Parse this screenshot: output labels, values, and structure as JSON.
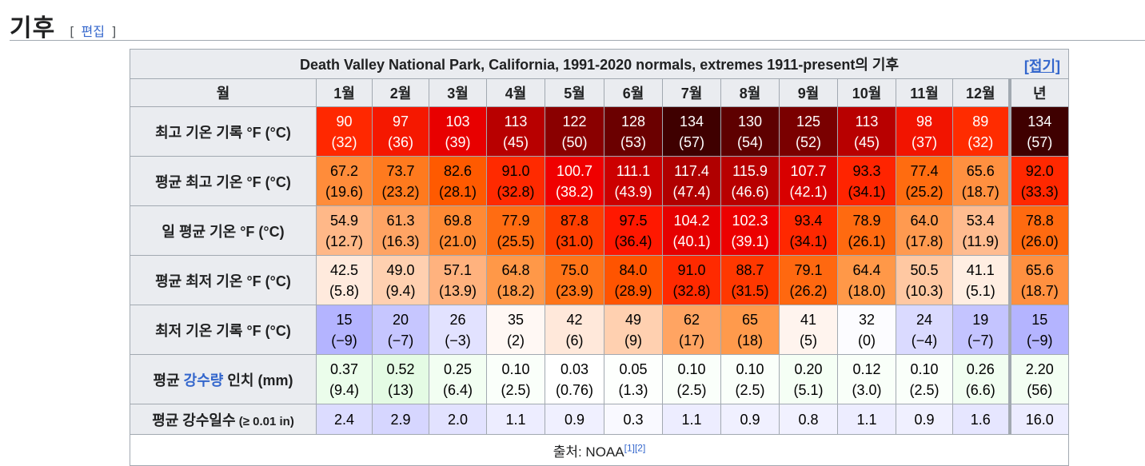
{
  "section": {
    "title": "기후",
    "edit_open": "[",
    "edit_label": "편집",
    "edit_close": "]"
  },
  "table": {
    "caption": "Death Valley National Park, California, 1991-2020 normals, extremes 1911-present의 기후",
    "collapse_label": "[접기]",
    "month_header": "월",
    "months": [
      "1월",
      "2월",
      "3월",
      "4월",
      "5월",
      "6월",
      "7월",
      "8월",
      "9월",
      "10월",
      "11월",
      "12월",
      "년"
    ],
    "rows": [
      {
        "label": "최고 기온 기록 °F (°C)",
        "cells": [
          {
            "f": "90",
            "c": "(32)",
            "bg": "#ff2800",
            "fg": "#ffffff"
          },
          {
            "f": "97",
            "c": "(36)",
            "bg": "#f51800",
            "fg": "#ffffff"
          },
          {
            "f": "103",
            "c": "(39)",
            "bg": "#e80000",
            "fg": "#ffffff"
          },
          {
            "f": "113",
            "c": "(45)",
            "bg": "#b80000",
            "fg": "#ffffff"
          },
          {
            "f": "122",
            "c": "(50)",
            "bg": "#8a0000",
            "fg": "#ffffff"
          },
          {
            "f": "128",
            "c": "(53)",
            "bg": "#6b0000",
            "fg": "#ffffff"
          },
          {
            "f": "134",
            "c": "(57)",
            "bg": "#3f0000",
            "fg": "#ffffff"
          },
          {
            "f": "130",
            "c": "(54)",
            "bg": "#5e0000",
            "fg": "#ffffff"
          },
          {
            "f": "125",
            "c": "(52)",
            "bg": "#7a0000",
            "fg": "#ffffff"
          },
          {
            "f": "113",
            "c": "(45)",
            "bg": "#b80000",
            "fg": "#ffffff"
          },
          {
            "f": "98",
            "c": "(37)",
            "bg": "#f21400",
            "fg": "#ffffff"
          },
          {
            "f": "89",
            "c": "(32)",
            "bg": "#ff2c00",
            "fg": "#ffffff"
          },
          {
            "f": "134",
            "c": "(57)",
            "bg": "#3f0000",
            "fg": "#ffffff"
          }
        ]
      },
      {
        "label": "평균 최고 기온 °F (°C)",
        "cells": [
          {
            "f": "67.2",
            "c": "(19.6)",
            "bg": "#ff8c3a",
            "fg": "#000000"
          },
          {
            "f": "73.7",
            "c": "(23.2)",
            "bg": "#ff7a1e",
            "fg": "#000000"
          },
          {
            "f": "82.6",
            "c": "(28.1)",
            "bg": "#ff5a00",
            "fg": "#000000"
          },
          {
            "f": "91.0",
            "c": "(32.8)",
            "bg": "#ff2a00",
            "fg": "#000000"
          },
          {
            "f": "100.7",
            "c": "(38.2)",
            "bg": "#f00000",
            "fg": "#ffffff"
          },
          {
            "f": "111.1",
            "c": "(43.9)",
            "bg": "#cc0000",
            "fg": "#ffffff"
          },
          {
            "f": "117.4",
            "c": "(47.4)",
            "bg": "#b00000",
            "fg": "#ffffff"
          },
          {
            "f": "115.9",
            "c": "(46.6)",
            "bg": "#b80000",
            "fg": "#ffffff"
          },
          {
            "f": "107.7",
            "c": "(42.1)",
            "bg": "#d80000",
            "fg": "#ffffff"
          },
          {
            "f": "93.3",
            "c": "(34.1)",
            "bg": "#ff2400",
            "fg": "#000000"
          },
          {
            "f": "77.4",
            "c": "(25.2)",
            "bg": "#ff6c10",
            "fg": "#000000"
          },
          {
            "f": "65.6",
            "c": "(18.7)",
            "bg": "#ff9040",
            "fg": "#000000"
          },
          {
            "f": "92.0",
            "c": "(33.3)",
            "bg": "#ff2800",
            "fg": "#000000"
          }
        ]
      },
      {
        "label": "일 평균 기온 °F (°C)",
        "cells": [
          {
            "f": "54.9",
            "c": "(12.7)",
            "bg": "#ffb888",
            "fg": "#000000"
          },
          {
            "f": "61.3",
            "c": "(16.3)",
            "bg": "#ffa464",
            "fg": "#000000"
          },
          {
            "f": "69.8",
            "c": "(21.0)",
            "bg": "#ff8a34",
            "fg": "#000000"
          },
          {
            "f": "77.9",
            "c": "(25.5)",
            "bg": "#ff6c12",
            "fg": "#000000"
          },
          {
            "f": "87.8",
            "c": "(31.0)",
            "bg": "#ff3e00",
            "fg": "#000000"
          },
          {
            "f": "97.5",
            "c": "(36.4)",
            "bg": "#ff1800",
            "fg": "#000000"
          },
          {
            "f": "104.2",
            "c": "(40.1)",
            "bg": "#e60000",
            "fg": "#ffffff"
          },
          {
            "f": "102.3",
            "c": "(39.1)",
            "bg": "#ec0000",
            "fg": "#ffffff"
          },
          {
            "f": "93.4",
            "c": "(34.1)",
            "bg": "#ff2800",
            "fg": "#000000"
          },
          {
            "f": "78.9",
            "c": "(26.1)",
            "bg": "#ff6a10",
            "fg": "#000000"
          },
          {
            "f": "64.0",
            "c": "(17.8)",
            "bg": "#ff9a50",
            "fg": "#000000"
          },
          {
            "f": "53.4",
            "c": "(11.9)",
            "bg": "#ffbc90",
            "fg": "#000000"
          },
          {
            "f": "78.8",
            "c": "(26.0)",
            "bg": "#ff6a10",
            "fg": "#000000"
          }
        ]
      },
      {
        "label": "평균 최저 기온 °F (°C)",
        "cells": [
          {
            "f": "42.5",
            "c": "(5.8)",
            "bg": "#ffeadd",
            "fg": "#000000"
          },
          {
            "f": "49.0",
            "c": "(9.4)",
            "bg": "#ffd0b0",
            "fg": "#000000"
          },
          {
            "f": "57.1",
            "c": "(13.9)",
            "bg": "#ffb27e",
            "fg": "#000000"
          },
          {
            "f": "64.8",
            "c": "(18.2)",
            "bg": "#ff9848",
            "fg": "#000000"
          },
          {
            "f": "75.0",
            "c": "(23.9)",
            "bg": "#ff7418",
            "fg": "#000000"
          },
          {
            "f": "84.0",
            "c": "(28.9)",
            "bg": "#ff5400",
            "fg": "#000000"
          },
          {
            "f": "91.0",
            "c": "(32.8)",
            "bg": "#ff2a00",
            "fg": "#000000"
          },
          {
            "f": "88.7",
            "c": "(31.5)",
            "bg": "#ff3800",
            "fg": "#000000"
          },
          {
            "f": "79.1",
            "c": "(26.2)",
            "bg": "#ff6810",
            "fg": "#000000"
          },
          {
            "f": "64.4",
            "c": "(18.0)",
            "bg": "#ff9848",
            "fg": "#000000"
          },
          {
            "f": "50.5",
            "c": "(10.3)",
            "bg": "#ffc8a2",
            "fg": "#000000"
          },
          {
            "f": "41.1",
            "c": "(5.1)",
            "bg": "#ffeee2",
            "fg": "#000000"
          },
          {
            "f": "65.6",
            "c": "(18.7)",
            "bg": "#ff9040",
            "fg": "#000000"
          }
        ]
      },
      {
        "label": "최저 기온 기록 °F (°C)",
        "cells": [
          {
            "f": "15",
            "c": "(−9)",
            "bg": "#b4b4ff",
            "fg": "#000000"
          },
          {
            "f": "20",
            "c": "(−7)",
            "bg": "#c6c6ff",
            "fg": "#000000"
          },
          {
            "f": "26",
            "c": "(−3)",
            "bg": "#e2e2ff",
            "fg": "#000000"
          },
          {
            "f": "35",
            "c": "(2)",
            "bg": "#fff8f4",
            "fg": "#000000"
          },
          {
            "f": "42",
            "c": "(6)",
            "bg": "#ffe8da",
            "fg": "#000000"
          },
          {
            "f": "49",
            "c": "(9)",
            "bg": "#ffd0b0",
            "fg": "#000000"
          },
          {
            "f": "62",
            "c": "(17)",
            "bg": "#ffa462",
            "fg": "#000000"
          },
          {
            "f": "65",
            "c": "(18)",
            "bg": "#ff9a4c",
            "fg": "#000000"
          },
          {
            "f": "41",
            "c": "(5)",
            "bg": "#fff4ee",
            "fg": "#000000"
          },
          {
            "f": "32",
            "c": "(0)",
            "bg": "#fcfcff",
            "fg": "#000000"
          },
          {
            "f": "24",
            "c": "(−4)",
            "bg": "#dadaff",
            "fg": "#000000"
          },
          {
            "f": "19",
            "c": "(−7)",
            "bg": "#c4c4ff",
            "fg": "#000000"
          },
          {
            "f": "15",
            "c": "(−9)",
            "bg": "#b4b4ff",
            "fg": "#000000"
          }
        ]
      },
      {
        "label_prefix": "평균 ",
        "label_link": "강수량",
        "label_suffix": " 인치 (mm)",
        "cells": [
          {
            "f": "0.37",
            "c": "(9.4)",
            "bg": "#ebfdeb",
            "fg": "#000000"
          },
          {
            "f": "0.52",
            "c": "(13)",
            "bg": "#e4fbe4",
            "fg": "#000000"
          },
          {
            "f": "0.25",
            "c": "(6.4)",
            "bg": "#f2fef2",
            "fg": "#000000"
          },
          {
            "f": "0.10",
            "c": "(2.5)",
            "bg": "#fafffa",
            "fg": "#000000"
          },
          {
            "f": "0.03",
            "c": "(0.76)",
            "bg": "#ffffff",
            "fg": "#000000"
          },
          {
            "f": "0.05",
            "c": "(1.3)",
            "bg": "#fdfffd",
            "fg": "#000000"
          },
          {
            "f": "0.10",
            "c": "(2.5)",
            "bg": "#fafffa",
            "fg": "#000000"
          },
          {
            "f": "0.10",
            "c": "(2.5)",
            "bg": "#fafffa",
            "fg": "#000000"
          },
          {
            "f": "0.20",
            "c": "(5.1)",
            "bg": "#f5fff5",
            "fg": "#000000"
          },
          {
            "f": "0.12",
            "c": "(3.0)",
            "bg": "#f9fff9",
            "fg": "#000000"
          },
          {
            "f": "0.10",
            "c": "(2.5)",
            "bg": "#fafffa",
            "fg": "#000000"
          },
          {
            "f": "0.26",
            "c": "(6.6)",
            "bg": "#f1fef1",
            "fg": "#000000"
          },
          {
            "f": "2.20",
            "c": "(56)",
            "bg": "#f3fef3",
            "fg": "#000000"
          }
        ]
      },
      {
        "label_main": "평균 강수일수",
        "label_small": " (≥ 0.01 in)",
        "cells": [
          {
            "f": "2.4",
            "c": "",
            "bg": "#dcdcff",
            "fg": "#000000"
          },
          {
            "f": "2.9",
            "c": "",
            "bg": "#d6d6ff",
            "fg": "#000000"
          },
          {
            "f": "2.0",
            "c": "",
            "bg": "#e2e2ff",
            "fg": "#000000"
          },
          {
            "f": "1.1",
            "c": "",
            "bg": "#ededff",
            "fg": "#000000"
          },
          {
            "f": "0.9",
            "c": "",
            "bg": "#f0f0ff",
            "fg": "#000000"
          },
          {
            "f": "0.3",
            "c": "",
            "bg": "#f9f9ff",
            "fg": "#000000"
          },
          {
            "f": "1.1",
            "c": "",
            "bg": "#ededff",
            "fg": "#000000"
          },
          {
            "f": "0.9",
            "c": "",
            "bg": "#f0f0ff",
            "fg": "#000000"
          },
          {
            "f": "0.8",
            "c": "",
            "bg": "#f1f1ff",
            "fg": "#000000"
          },
          {
            "f": "1.1",
            "c": "",
            "bg": "#ededff",
            "fg": "#000000"
          },
          {
            "f": "0.9",
            "c": "",
            "bg": "#f0f0ff",
            "fg": "#000000"
          },
          {
            "f": "1.6",
            "c": "",
            "bg": "#e6e6ff",
            "fg": "#000000"
          },
          {
            "f": "16.0",
            "c": "",
            "bg": "#ececff",
            "fg": "#000000"
          }
        ]
      }
    ],
    "source_label": "출처: NOAA",
    "source_refs": [
      "[1]",
      "[2]"
    ]
  }
}
